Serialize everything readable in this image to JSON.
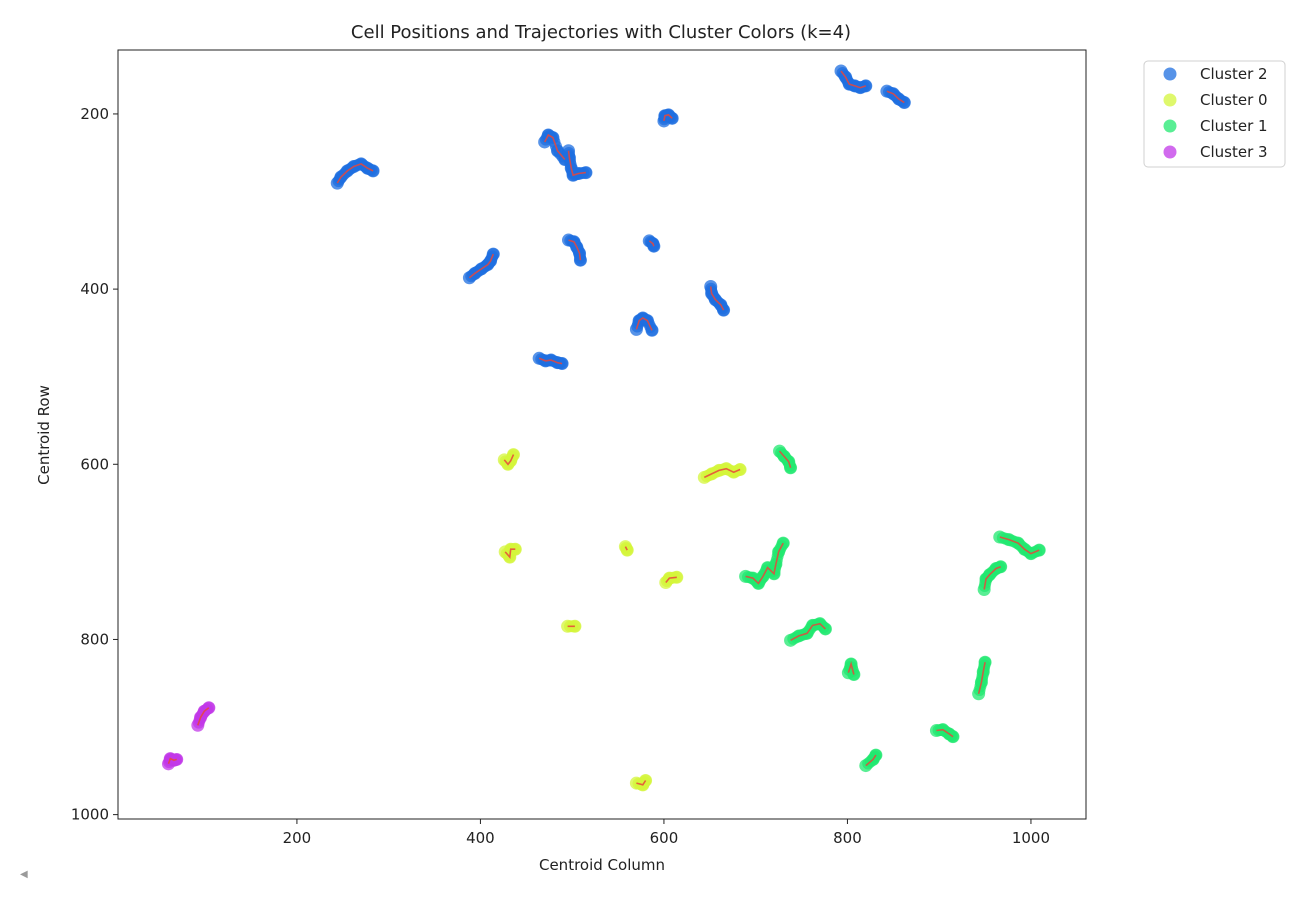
{
  "chart_data": {
    "type": "scatter",
    "title": "Cell Positions and Trajectories with Cluster Colors (k=4)",
    "xlabel": "Centroid Column",
    "ylabel": "Centroid Row",
    "xlim": [
      5,
      1060
    ],
    "ylim": [
      1005,
      127
    ],
    "y_inverted": true,
    "x_ticks": [
      200,
      400,
      600,
      800,
      1000
    ],
    "y_ticks": [
      200,
      400,
      600,
      800,
      1000
    ],
    "grid": false,
    "legend_position": "outside top-right",
    "trajectory_color": "#e8463b",
    "series": [
      {
        "name": "Cluster 2",
        "color": "#1f6fe0",
        "tracks": [
          [
            [
              244,
              279
            ],
            [
              248,
              272
            ],
            [
              255,
              265
            ],
            [
              262,
              260
            ],
            [
              270,
              257
            ],
            [
              277,
              262
            ],
            [
              283,
              265
            ]
          ],
          [
            [
              470,
              232
            ],
            [
              474,
              224
            ],
            [
              479,
              227
            ],
            [
              484,
              242
            ],
            [
              492,
              252
            ]
          ],
          [
            [
              496,
              242
            ],
            [
              497,
              250
            ],
            [
              499,
              262
            ],
            [
              501,
              270
            ],
            [
              507,
              268
            ],
            [
              515,
              267
            ]
          ],
          [
            [
              600,
              208
            ],
            [
              601,
              202
            ],
            [
              605,
              201
            ],
            [
              609,
              205
            ]
          ],
          [
            [
              793,
              151
            ],
            [
              798,
              158
            ],
            [
              802,
              166
            ],
            [
              808,
              168
            ],
            [
              814,
              170
            ],
            [
              820,
              168
            ]
          ],
          [
            [
              843,
              174
            ],
            [
              850,
              177
            ],
            [
              856,
              183
            ],
            [
              862,
              187
            ]
          ],
          [
            [
              388,
              387
            ],
            [
              394,
              382
            ],
            [
              401,
              377
            ],
            [
              408,
              372
            ],
            [
              411,
              368
            ],
            [
              414,
              360
            ]
          ],
          [
            [
              496,
              344
            ],
            [
              502,
              346
            ],
            [
              505,
              352
            ],
            [
              508,
              359
            ],
            [
              509,
              367
            ]
          ],
          [
            [
              584,
              345
            ],
            [
              588,
              348
            ],
            [
              589,
              351
            ]
          ],
          [
            [
              651,
              397
            ],
            [
              652,
              405
            ],
            [
              656,
              412
            ],
            [
              662,
              418
            ],
            [
              665,
              424
            ]
          ],
          [
            [
              570,
              446
            ],
            [
              573,
              436
            ],
            [
              577,
              433
            ],
            [
              582,
              436
            ],
            [
              587,
              447
            ]
          ],
          [
            [
              464,
              479
            ],
            [
              471,
              482
            ],
            [
              477,
              481
            ],
            [
              484,
              484
            ],
            [
              489,
              485
            ]
          ]
        ]
      },
      {
        "name": "Cluster 0",
        "color": "#d4f53b",
        "tracks": [
          [
            [
              426,
              595
            ],
            [
              430,
              600
            ],
            [
              433,
              596
            ],
            [
              436,
              589
            ]
          ],
          [
            [
              644,
              615
            ],
            [
              652,
              611
            ],
            [
              660,
              607
            ],
            [
              668,
              605
            ],
            [
              676,
              609
            ],
            [
              683,
              606
            ]
          ],
          [
            [
              427,
              700
            ],
            [
              432,
              706
            ],
            [
              433,
              697
            ],
            [
              438,
              697
            ]
          ],
          [
            [
              558,
              694
            ],
            [
              560,
              698
            ]
          ],
          [
            [
              602,
              735
            ],
            [
              606,
              730
            ],
            [
              614,
              729
            ]
          ],
          [
            [
              495,
              785
            ],
            [
              503,
              785
            ]
          ],
          [
            [
              570,
              964
            ],
            [
              577,
              966
            ],
            [
              580,
              961
            ]
          ]
        ]
      },
      {
        "name": "Cluster 1",
        "color": "#22e870",
        "tracks": [
          [
            [
              726,
              585
            ],
            [
              731,
              591
            ],
            [
              736,
              597
            ],
            [
              738,
              604
            ]
          ],
          [
            [
              689,
              728
            ],
            [
              697,
              730
            ],
            [
              703,
              736
            ],
            [
              708,
              728
            ],
            [
              713,
              718
            ],
            [
              720,
              725
            ],
            [
              722,
              714
            ],
            [
              725,
              700
            ],
            [
              730,
              690
            ]
          ],
          [
            [
              966,
              683
            ],
            [
              976,
              686
            ],
            [
              986,
              690
            ],
            [
              993,
              697
            ],
            [
              1000,
              702
            ],
            [
              1009,
              698
            ]
          ],
          [
            [
              949,
              743
            ],
            [
              951,
              731
            ],
            [
              955,
              726
            ],
            [
              962,
              719
            ],
            [
              967,
              717
            ]
          ],
          [
            [
              738,
              801
            ],
            [
              747,
              796
            ],
            [
              756,
              793
            ],
            [
              762,
              784
            ],
            [
              770,
              782
            ],
            [
              776,
              788
            ]
          ],
          [
            [
              801,
              838
            ],
            [
              804,
              828
            ],
            [
              807,
              840
            ]
          ],
          [
            [
              943,
              862
            ],
            [
              946,
              849
            ],
            [
              948,
              837
            ],
            [
              950,
              826
            ]
          ],
          [
            [
              897,
              904
            ],
            [
              904,
              903
            ],
            [
              911,
              908
            ],
            [
              915,
              911
            ]
          ],
          [
            [
              820,
              944
            ],
            [
              828,
              937
            ],
            [
              831,
              932
            ]
          ]
        ]
      },
      {
        "name": "Cluster 3",
        "color": "#c138e8",
        "tracks": [
          [
            [
              92,
              898
            ],
            [
              95,
              889
            ],
            [
              99,
              882
            ],
            [
              104,
              878
            ]
          ],
          [
            [
              60,
              942
            ],
            [
              62,
              936
            ],
            [
              66,
              938
            ],
            [
              69,
              937
            ]
          ]
        ]
      }
    ],
    "legend_order": [
      0,
      1,
      2,
      3
    ]
  }
}
